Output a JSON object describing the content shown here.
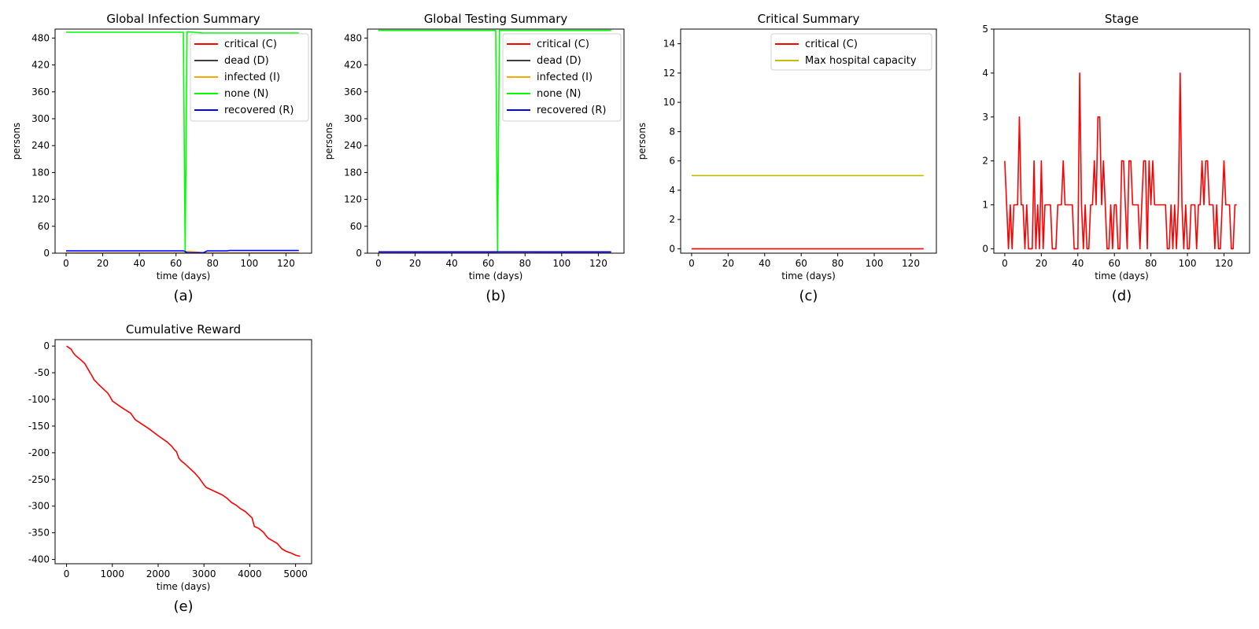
{
  "chart_data": [
    {
      "type": "line",
      "title": "Global Infection Summary",
      "xlabel": "time (days)",
      "ylabel": "persons",
      "caption": "(a)",
      "xlim": [
        -6,
        134
      ],
      "ylim": [
        0,
        500
      ],
      "xticks": [
        0,
        20,
        40,
        60,
        80,
        100,
        120
      ],
      "yticks": [
        0,
        60,
        120,
        180,
        240,
        300,
        360,
        420,
        480
      ],
      "grid": false,
      "legend": "top-right",
      "series": [
        {
          "name": "critical (C)",
          "color": "#ff0000",
          "x": [
            0,
            127
          ],
          "y": [
            0,
            0
          ]
        },
        {
          "name": "dead (D)",
          "color": "#404040",
          "x": [
            0,
            127
          ],
          "y": [
            0,
            0
          ]
        },
        {
          "name": "infected (I)",
          "color": "#ffa500",
          "x": [
            0,
            64,
            65,
            66,
            70,
            75,
            77,
            127
          ],
          "y": [
            0,
            0,
            1,
            4,
            3,
            1,
            0,
            0
          ]
        },
        {
          "name": "none (N)",
          "color": "#00ff00",
          "x": [
            0,
            64,
            65,
            66,
            70,
            75,
            80,
            127
          ],
          "y": [
            493,
            493,
            2,
            494,
            493,
            491,
            491,
            491
          ]
        },
        {
          "name": "recovered (R)",
          "color": "#0000ff",
          "x": [
            0,
            64,
            65,
            66,
            75,
            77,
            88,
            89,
            127
          ],
          "y": [
            5,
            5,
            4,
            1,
            1,
            5,
            5,
            6,
            6
          ]
        }
      ]
    },
    {
      "type": "line",
      "title": "Global Testing Summary",
      "xlabel": "time (days)",
      "ylabel": "persons",
      "caption": "(b)",
      "xlim": [
        -6,
        134
      ],
      "ylim": [
        0,
        500
      ],
      "xticks": [
        0,
        20,
        40,
        60,
        80,
        100,
        120
      ],
      "yticks": [
        0,
        60,
        120,
        180,
        240,
        300,
        360,
        420,
        480
      ],
      "grid": false,
      "legend": "top-right",
      "series": [
        {
          "name": "critical (C)",
          "color": "#ff0000",
          "x": [
            0,
            127
          ],
          "y": [
            0,
            0
          ]
        },
        {
          "name": "dead (D)",
          "color": "#404040",
          "x": [
            0,
            127
          ],
          "y": [
            0,
            0
          ]
        },
        {
          "name": "infected (I)",
          "color": "#ffa500",
          "x": [
            0,
            64,
            66,
            75,
            80,
            85,
            127
          ],
          "y": [
            0,
            0,
            1,
            1,
            2,
            0,
            0
          ]
        },
        {
          "name": "none (N)",
          "color": "#00ff00",
          "x": [
            0,
            64,
            65,
            66,
            127
          ],
          "y": [
            497,
            497,
            2,
            497,
            497
          ]
        },
        {
          "name": "recovered (R)",
          "color": "#0000ff",
          "x": [
            0,
            127
          ],
          "y": [
            3,
            3
          ]
        }
      ]
    },
    {
      "type": "line",
      "title": "Critical Summary",
      "xlabel": "time (days)",
      "ylabel": "persons",
      "caption": "(c)",
      "xlim": [
        -6,
        134
      ],
      "ylim": [
        -0.3,
        15
      ],
      "xticks": [
        0,
        20,
        40,
        60,
        80,
        100,
        120
      ],
      "yticks": [
        0,
        2,
        4,
        6,
        8,
        10,
        12,
        14
      ],
      "grid": false,
      "legend": "top-right",
      "series": [
        {
          "name": "critical (C)",
          "color": "#ff0000",
          "x": [
            0,
            127
          ],
          "y": [
            0,
            0
          ]
        },
        {
          "name": "Max hospital capacity",
          "color": "#bfbf00",
          "x": [
            0,
            127
          ],
          "y": [
            5,
            5
          ]
        }
      ]
    },
    {
      "type": "line",
      "title": "Stage",
      "xlabel": "time (days)",
      "ylabel": "",
      "caption": "(d)",
      "xlim": [
        -6,
        134
      ],
      "ylim": [
        -0.1,
        5
      ],
      "xticks": [
        0,
        20,
        40,
        60,
        80,
        100,
        120
      ],
      "yticks": [
        0,
        1,
        2,
        3,
        4,
        5
      ],
      "grid": false,
      "legend": "",
      "series": [
        {
          "name": "",
          "color": "#ff0000",
          "x": [
            0,
            1,
            2,
            3,
            4,
            5,
            6,
            7,
            8,
            9,
            10,
            11,
            12,
            13,
            14,
            15,
            16,
            17,
            18,
            19,
            20,
            21,
            22,
            23,
            24,
            25,
            26,
            27,
            28,
            29,
            30,
            31,
            32,
            33,
            34,
            35,
            36,
            37,
            38,
            39,
            40,
            41,
            42,
            43,
            44,
            45,
            46,
            47,
            48,
            49,
            50,
            51,
            52,
            53,
            54,
            55,
            56,
            57,
            58,
            59,
            60,
            61,
            62,
            63,
            64,
            65,
            66,
            67,
            68,
            69,
            70,
            71,
            72,
            73,
            74,
            75,
            76,
            77,
            78,
            79,
            80,
            81,
            82,
            83,
            84,
            85,
            86,
            87,
            88,
            89,
            90,
            91,
            92,
            93,
            94,
            95,
            96,
            97,
            98,
            99,
            100,
            101,
            102,
            103,
            104,
            105,
            106,
            107,
            108,
            109,
            110,
            111,
            112,
            113,
            114,
            115,
            116,
            117,
            118,
            119,
            120,
            121,
            122,
            123,
            124,
            125,
            126,
            127
          ],
          "y": [
            2,
            1,
            0,
            1,
            0,
            1,
            1,
            1,
            3,
            1,
            1,
            0,
            1,
            0,
            0,
            0,
            2,
            0,
            1,
            0,
            2,
            0,
            1,
            1,
            1,
            1,
            0,
            0,
            0,
            1,
            1,
            1,
            2,
            1,
            1,
            1,
            1,
            1,
            0,
            0,
            0,
            4,
            1,
            0,
            1,
            0,
            0,
            1,
            1,
            2,
            1,
            3,
            3,
            1,
            2,
            1,
            0,
            0,
            1,
            0,
            1,
            1,
            0,
            0,
            2,
            2,
            1,
            0,
            2,
            2,
            1,
            1,
            1,
            1,
            0,
            1,
            2,
            2,
            0,
            2,
            1,
            2,
            1,
            1,
            1,
            1,
            1,
            1,
            1,
            0,
            0,
            1,
            0,
            1,
            0,
            1,
            4,
            1,
            0,
            1,
            0,
            0,
            1,
            1,
            1,
            0,
            1,
            1,
            2,
            1,
            2,
            2,
            1,
            1,
            1,
            0,
            1,
            0,
            0,
            1,
            2,
            1,
            1,
            1,
            0,
            0,
            1,
            1
          ]
        }
      ]
    },
    {
      "type": "line",
      "title": "Cumulative Reward",
      "xlabel": "time (days)",
      "ylabel": "",
      "caption": "(e)",
      "xlim": [
        -250,
        5350
      ],
      "ylim": [
        -408,
        12
      ],
      "xticks": [
        0,
        1000,
        2000,
        3000,
        4000,
        5000
      ],
      "yticks": [
        0,
        -50,
        -100,
        -150,
        -200,
        -250,
        -300,
        -350,
        -400
      ],
      "grid": false,
      "legend": "",
      "series": [
        {
          "name": "",
          "color": "#ff0000",
          "x": [
            0,
            50,
            100,
            150,
            200,
            300,
            400,
            500,
            550,
            600,
            700,
            800,
            900,
            950,
            1000,
            1200,
            1400,
            1500,
            1800,
            2000,
            2200,
            2300,
            2350,
            2400,
            2450,
            2500,
            2600,
            2700,
            2800,
            2850,
            2900,
            3000,
            3050,
            3200,
            3400,
            3500,
            3600,
            3700,
            3800,
            3900,
            4000,
            4050,
            4100,
            4200,
            4300,
            4350,
            4400,
            4500,
            4600,
            4650,
            4700,
            4800,
            4900,
            5000,
            5100
          ],
          "y": [
            0,
            -3,
            -6,
            -13,
            -18,
            -25,
            -33,
            -48,
            -55,
            -63,
            -72,
            -80,
            -88,
            -95,
            -103,
            -115,
            -126,
            -138,
            -155,
            -168,
            -180,
            -188,
            -194,
            -198,
            -210,
            -215,
            -222,
            -230,
            -238,
            -243,
            -248,
            -260,
            -265,
            -271,
            -279,
            -285,
            -293,
            -298,
            -305,
            -310,
            -318,
            -322,
            -338,
            -342,
            -349,
            -355,
            -360,
            -365,
            -370,
            -375,
            -380,
            -385,
            -388,
            -392,
            -394
          ]
        }
      ]
    }
  ]
}
